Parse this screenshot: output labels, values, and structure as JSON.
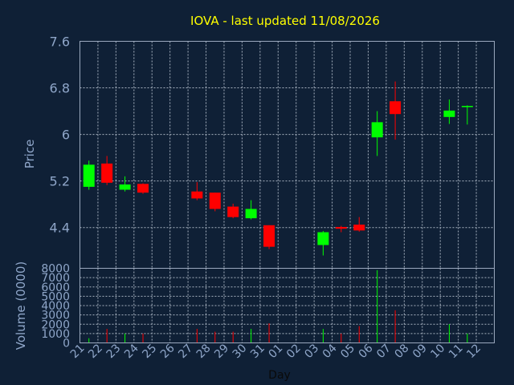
{
  "chart_data": {
    "type": "candlestick",
    "title": "IOVA - last updated 11/08/2026",
    "xlabel": "Day",
    "ylabel": "Price",
    "volume_label": "Volume (0000)",
    "x_ticks": [
      "21",
      "22",
      "23",
      "24",
      "25",
      "26",
      "27",
      "28",
      "29",
      "30",
      "31",
      "01",
      "02",
      "03",
      "04",
      "05",
      "06",
      "07",
      "08",
      "09",
      "10",
      "11",
      "12"
    ],
    "y_ticks": [
      "7.6",
      "6.8",
      "6",
      "5.2",
      "4.4"
    ],
    "y_range": [
      3.7,
      7.6
    ],
    "volume_ticks": [
      "8000",
      "7000",
      "6000",
      "5000",
      "4000",
      "3000",
      "2000",
      "1000",
      "0"
    ],
    "volume_range": [
      0,
      8000
    ],
    "grid": true,
    "up_color": "#00ff00",
    "down_color": "#ff0000",
    "candles": [
      {
        "x": 0,
        "open": 5.1,
        "high": 5.55,
        "low": 5.05,
        "close": 5.48,
        "volume": 500
      },
      {
        "x": 1,
        "open": 5.5,
        "high": 5.63,
        "low": 5.13,
        "close": 5.17,
        "volume": 1500
      },
      {
        "x": 2,
        "open": 5.05,
        "high": 5.28,
        "low": 5.02,
        "close": 5.14,
        "volume": 1000
      },
      {
        "x": 3,
        "open": 5.15,
        "high": 5.16,
        "low": 4.98,
        "close": 5.0,
        "volume": 1000
      },
      {
        "x": 6,
        "open": 5.02,
        "high": 5.18,
        "low": 4.87,
        "close": 4.9,
        "volume": 1500
      },
      {
        "x": 7,
        "open": 5.0,
        "high": 5.0,
        "low": 4.68,
        "close": 4.72,
        "volume": 1200
      },
      {
        "x": 8,
        "open": 4.76,
        "high": 4.81,
        "low": 4.56,
        "close": 4.58,
        "volume": 1200
      },
      {
        "x": 9,
        "open": 4.56,
        "high": 4.87,
        "low": 4.54,
        "close": 4.72,
        "volume": 1500
      },
      {
        "x": 10,
        "open": 4.44,
        "high": 4.44,
        "low": 4.03,
        "close": 4.07,
        "volume": 2100
      },
      {
        "x": 13,
        "open": 4.1,
        "high": 4.34,
        "low": 3.92,
        "close": 4.32,
        "volume": 1500
      },
      {
        "x": 14,
        "open": 4.41,
        "high": 4.43,
        "low": 4.32,
        "close": 4.38,
        "volume": 1000
      },
      {
        "x": 15,
        "open": 4.45,
        "high": 4.58,
        "low": 4.33,
        "close": 4.35,
        "volume": 1800
      },
      {
        "x": 16,
        "open": 5.95,
        "high": 6.4,
        "low": 5.63,
        "close": 6.21,
        "volume": 7800
      },
      {
        "x": 17,
        "open": 6.57,
        "high": 6.91,
        "low": 5.91,
        "close": 6.35,
        "volume": 3500
      },
      {
        "x": 20,
        "open": 6.3,
        "high": 6.6,
        "low": 6.18,
        "close": 6.41,
        "volume": 2000
      },
      {
        "x": 21,
        "open": 6.48,
        "high": 6.5,
        "low": 6.17,
        "close": 6.49,
        "volume": 1000
      }
    ]
  }
}
